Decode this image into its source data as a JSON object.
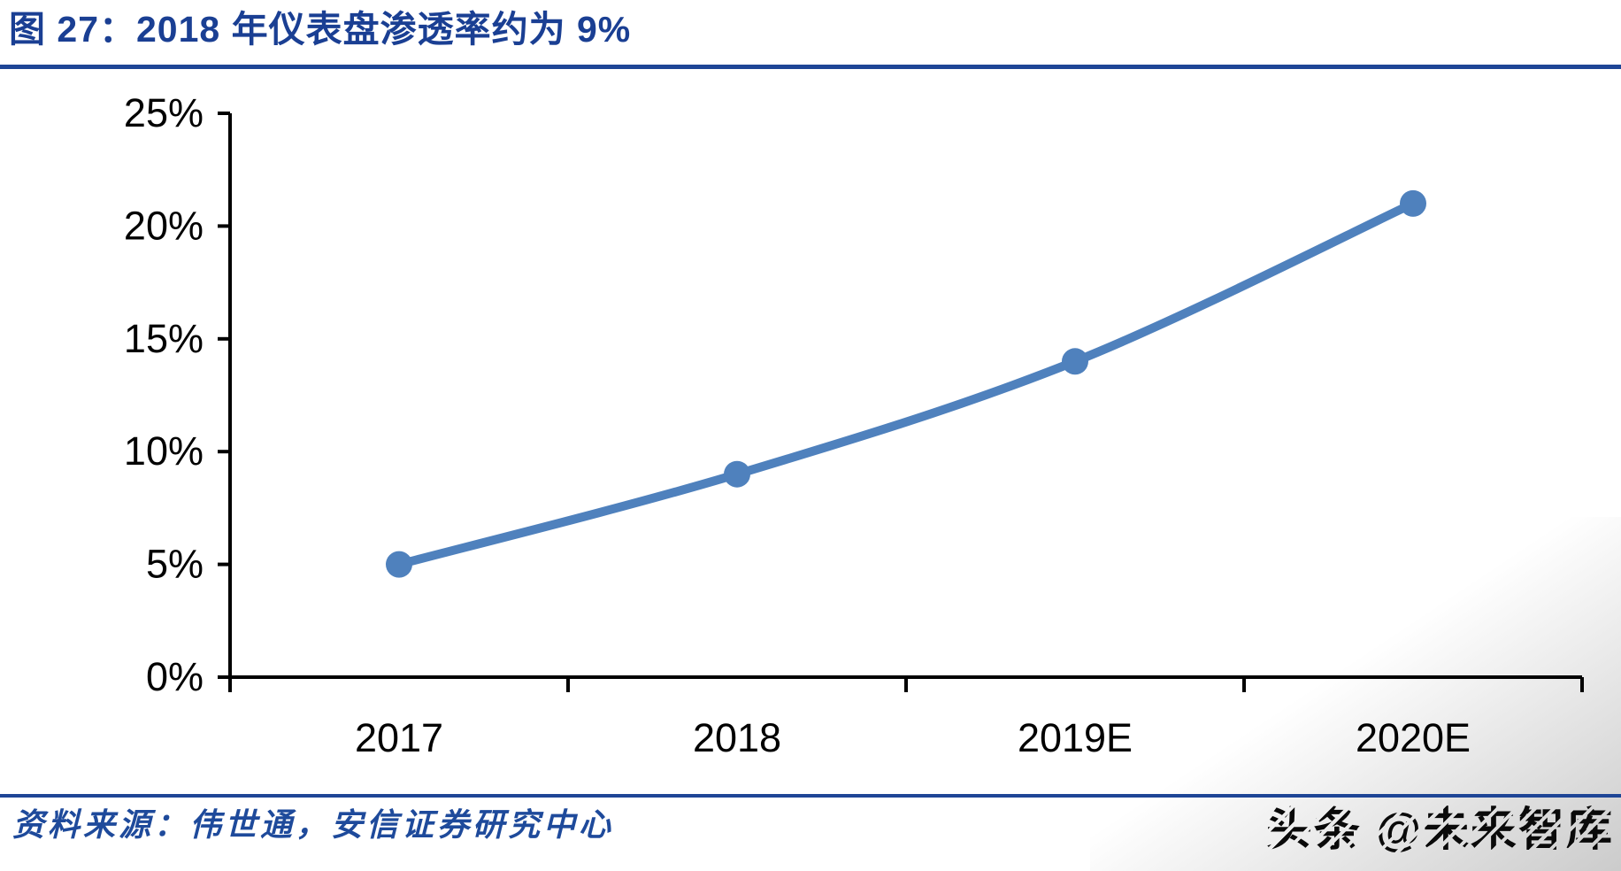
{
  "header": {
    "title": "图 27：2018 年仪表盘渗透率约为 9%"
  },
  "chart_data": {
    "type": "line",
    "title": "2018 年仪表盘渗透率约为 9%",
    "categories": [
      "2017",
      "2018",
      "2019E",
      "2020E"
    ],
    "values": [
      5,
      9,
      14,
      21
    ],
    "unit": "%",
    "xlabel": "",
    "ylabel": "",
    "ylim": [
      0,
      25
    ],
    "y_tick_step": 5,
    "y_tick_labels": [
      "0%",
      "5%",
      "10%",
      "15%",
      "20%",
      "25%"
    ],
    "grid": false,
    "legend": "none",
    "smooth": true,
    "marker": "circle",
    "line_color": "#4F81BD"
  },
  "footer": {
    "source": "资料来源：伟世通，安信证券研究中心",
    "watermark": "头条 @未来智库"
  },
  "colors": {
    "title-blue": "#1A3F93",
    "divider-blue": "#1E4596",
    "source-blue": "#1E4A9B",
    "axis-black": "#000000",
    "line-blue": "#4F81BD"
  }
}
